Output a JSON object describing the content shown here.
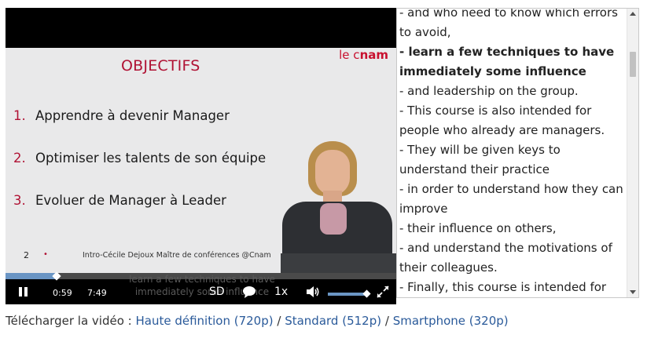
{
  "slide": {
    "title": "OBJECTIFS",
    "logo_prefix": "le c",
    "logo_bold": "nam",
    "items": [
      {
        "num": "1.",
        "text": "Apprendre à devenir Manager"
      },
      {
        "num": "2.",
        "text": "Optimiser les talents de son équipe"
      },
      {
        "num": "3.",
        "text": "Evoluer de Manager à Leader"
      }
    ],
    "page_number": "2",
    "footer": "Intro-Cécile Dejoux Maître de conférences @Cnam"
  },
  "player": {
    "subtitle_line1": "learn a few techniques to have",
    "subtitle_line2": "immediately some influence",
    "current_time": "0:59",
    "duration": "7:49",
    "progress_fraction": 0.13,
    "quality": "SD",
    "speed": "1x",
    "volume_fraction": 0.9,
    "accent_color": "#6a95c4"
  },
  "transcript": {
    "lines": [
      {
        "text": " - and who need to know which errors",
        "current": false
      },
      {
        "text": "to avoid,",
        "current": false
      },
      {
        "text": " - learn a few techniques to have",
        "current": true
      },
      {
        "text": "immediately some influence",
        "current": true
      },
      {
        "text": " - and leadership on the group.",
        "current": false
      },
      {
        "text": " - This course is also intended for",
        "current": false
      },
      {
        "text": "people who already are managers.",
        "current": false
      },
      {
        "text": " - They will be given keys to",
        "current": false
      },
      {
        "text": "understand their practice",
        "current": false
      },
      {
        "text": " - in order to understand how they can",
        "current": false
      },
      {
        "text": "improve",
        "current": false
      },
      {
        "text": " - their influence on others,",
        "current": false
      },
      {
        "text": " - and understand the motivations of",
        "current": false
      },
      {
        "text": "their colleagues.",
        "current": false
      },
      {
        "text": " - Finally, this course is intended for",
        "current": false
      }
    ]
  },
  "downloads": {
    "label": "Télécharger la vidéo :",
    "hd": "Haute définition (720p)",
    "separator": "/",
    "standard": "Standard (512p)",
    "smartphone": "Smartphone (320p)"
  }
}
